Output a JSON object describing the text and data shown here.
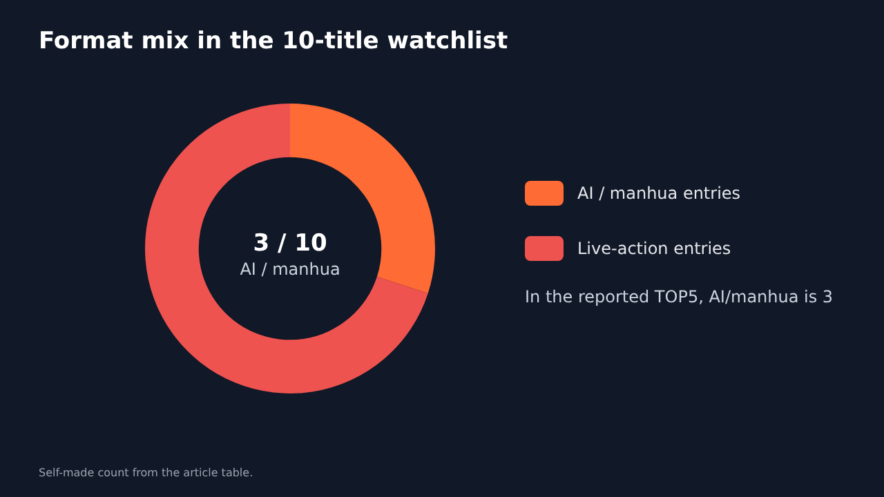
{
  "chart_data": {
    "type": "donut",
    "title": "Format mix in the 10-title watchlist",
    "categories": [
      "AI / manhua entries",
      "Live-action entries"
    ],
    "values": [
      30,
      70
    ],
    "colors": [
      "#ff6b35",
      "#ef5350"
    ],
    "legend": "right",
    "annotations": [
      "3 / 10",
      "AI / manhua",
      "In the reported TOP5, AI/manhua is 3",
      "Self-made count from the article table."
    ]
  }
}
